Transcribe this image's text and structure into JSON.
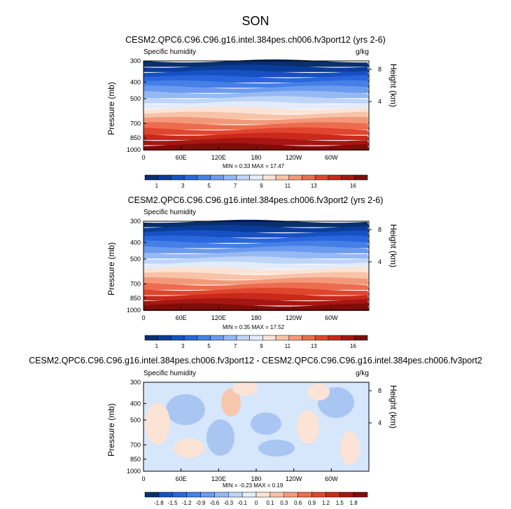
{
  "title": "SON",
  "chart_data": [
    {
      "type": "heatmap",
      "title": "CESM2.QPC6.C96.C96.g16.intel.384pes.ch006.fv3port12 (yrs 2-6)",
      "field_label": "Specific humidity",
      "units": "g/kg",
      "xlabel": "",
      "ylabel": "Pressure (mb)",
      "y2label": "Height (km)",
      "x_ticks": [
        "0",
        "60E",
        "120E",
        "180",
        "120W",
        "60W"
      ],
      "y_ticks": [
        300,
        400,
        500,
        700,
        850,
        1000
      ],
      "y2_ticks": [
        8,
        4
      ],
      "ylim": [
        1000,
        300
      ],
      "min": 0.33,
      "max": 17.47,
      "stats_text": "MIN =  0.33  MAX = 17.47",
      "colorbar_levels": [
        1,
        2,
        3,
        4,
        5,
        6,
        7,
        8,
        9,
        10,
        11,
        12,
        13,
        14,
        15,
        16
      ],
      "colorbar_labels": [
        "1",
        "3",
        "5",
        "7",
        "9",
        "11",
        "13",
        "16"
      ]
    },
    {
      "type": "heatmap",
      "title": "CESM2.QPC6.C96.C96.g16.intel.384pes.ch006.fv3port2 (yrs 2-6)",
      "field_label": "Specific humidity",
      "units": "",
      "xlabel": "",
      "ylabel": "Pressure (mb)",
      "y2label": "Height (km)",
      "x_ticks": [
        "0",
        "60E",
        "120E",
        "180",
        "120W",
        "60W"
      ],
      "y_ticks": [
        300,
        400,
        500,
        700,
        850,
        1000
      ],
      "y2_ticks": [
        8,
        4
      ],
      "ylim": [
        1000,
        300
      ],
      "min": 0.35,
      "max": 17.52,
      "stats_text": "MIN =  0.35  MAX = 17.52",
      "colorbar_levels": [
        1,
        2,
        3,
        4,
        5,
        6,
        7,
        8,
        9,
        10,
        11,
        12,
        13,
        14,
        15,
        16
      ],
      "colorbar_labels": [
        "1",
        "3",
        "5",
        "7",
        "9",
        "11",
        "13",
        "16"
      ]
    },
    {
      "type": "heatmap",
      "title": "CESM2.QPC6.C96.C96.g16.intel.384pes.ch006.fv3port12 - CESM2.QPC6.C96.C96.g16.intel.384pes.ch006.fv3port2",
      "field_label": "Specific humidity",
      "units": "g/kg",
      "xlabel": "",
      "ylabel": "Pressure (mb)",
      "y2label": "Height (km)",
      "x_ticks": [
        "0",
        "60E",
        "120E",
        "180",
        "120W",
        "60W"
      ],
      "y_ticks": [
        300,
        400,
        500,
        700,
        850,
        1000
      ],
      "y2_ticks": [
        8,
        4
      ],
      "ylim": [
        1000,
        300
      ],
      "min": -0.23,
      "max": 0.19,
      "stats_text": "MIN = -0.23  MAX =  0.19",
      "colorbar_levels": [
        -1.8,
        -1.5,
        -1.2,
        -0.9,
        -0.6,
        -0.3,
        -0.1,
        0,
        0.1,
        0.3,
        0.6,
        0.9,
        1.2,
        1.5,
        1.8
      ],
      "colorbar_labels": [
        "-1.8",
        "-1.5",
        "-1.2",
        "-0.9",
        "-0.6",
        "-0.3",
        "-0.1",
        "0",
        "0.1",
        "0.3",
        "0.6",
        "0.9",
        "1.2",
        "1.5",
        "1.8"
      ]
    }
  ],
  "colors": {
    "sequential": [
      "#08306b",
      "#0a3c9a",
      "#1750c2",
      "#2a66dc",
      "#467fe6",
      "#6a9bee",
      "#96b9f4",
      "#bfd5f8",
      "#e2ecfb",
      "#fbe3d6",
      "#f8c3a8",
      "#f3997a",
      "#ec6c4f",
      "#e0452e",
      "#c9291b",
      "#a71612",
      "#7f0d0a"
    ],
    "diff_neutral": "#d6e6fb",
    "diff_neg": "#a9c6f3",
    "diff_pos": "#fbe3d6",
    "diff_pos2": "#f6c7ad"
  }
}
